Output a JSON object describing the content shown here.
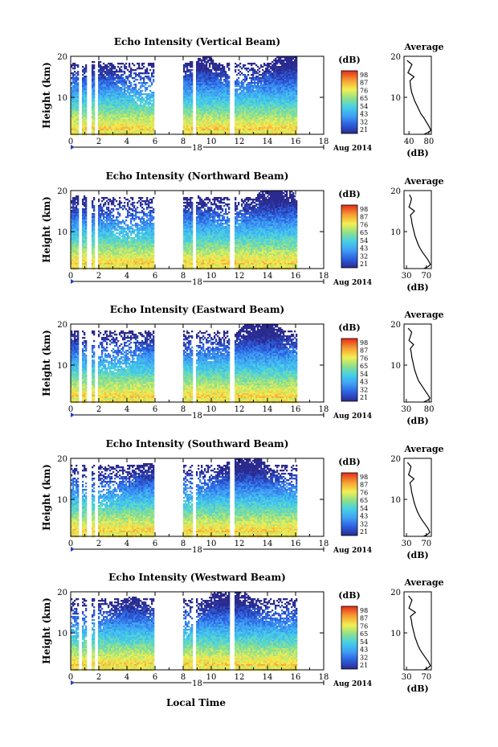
{
  "figure": {
    "xlabel_bottom": "Local Time",
    "date_label": "Aug 2014",
    "day_label": "18",
    "colorbar_unit": "(dB)",
    "profile_title": "Average",
    "profile_xlabel": "(dB)"
  },
  "chart_data": [
    {
      "type": "heatmap",
      "title": "Echo Intensity (Vertical Beam)",
      "ylabel": "Height (km)",
      "x_ticks": [
        "0",
        "2",
        "4",
        "6",
        "8",
        "10",
        "12",
        "14",
        "16",
        "18"
      ],
      "xlim": [
        0,
        18
      ],
      "y_ticks": [
        "10",
        "20"
      ],
      "ylim": [
        1,
        20
      ],
      "colorbar": {
        "unit": "(dB)",
        "ticks": [
          "21",
          "32",
          "43",
          "54",
          "65",
          "76",
          "87",
          "98"
        ]
      },
      "gaps": [
        [
          0.5,
          0.7
        ],
        [
          1.1,
          1.4
        ],
        [
          1.7,
          1.9
        ],
        [
          5.9,
          7.9
        ],
        [
          8.6,
          8.9
        ],
        [
          11.3,
          11.6
        ],
        [
          16.1,
          18
        ]
      ],
      "profile": {
        "title": "Average",
        "xlabel": "(dB)",
        "x_ticks": [
          "40",
          "80"
        ],
        "xlim": [
          30,
          85
        ],
        "heights": [
          1,
          1.5,
          2,
          3,
          4,
          5,
          6,
          7,
          8,
          9,
          10,
          11,
          12,
          13,
          14,
          15,
          16,
          17,
          18,
          19
        ],
        "values": [
          70,
          80,
          84,
          80,
          75,
          70,
          64,
          60,
          56,
          52,
          49,
          46,
          44,
          43,
          42,
          50,
          38,
          42,
          46,
          36
        ]
      }
    },
    {
      "type": "heatmap",
      "title": "Echo Intensity (Northward Beam)",
      "ylabel": "Height (km)",
      "x_ticks": [
        "0",
        "2",
        "4",
        "6",
        "8",
        "10",
        "12",
        "14",
        "16",
        "18"
      ],
      "xlim": [
        0,
        18
      ],
      "y_ticks": [
        "10",
        "20"
      ],
      "ylim": [
        1,
        20
      ],
      "colorbar": {
        "unit": "(dB)",
        "ticks": [
          "21",
          "32",
          "43",
          "54",
          "65",
          "76",
          "87",
          "98"
        ]
      },
      "gaps": [
        [
          0.5,
          0.7
        ],
        [
          1.1,
          1.4
        ],
        [
          1.7,
          1.9
        ],
        [
          5.9,
          7.9
        ],
        [
          8.6,
          8.9
        ],
        [
          11.3,
          11.6
        ],
        [
          16.1,
          18
        ]
      ],
      "profile": {
        "title": "Average",
        "xlabel": "(dB)",
        "x_ticks": [
          "30",
          "70"
        ],
        "xlim": [
          25,
          80
        ],
        "heights": [
          1,
          1.5,
          2,
          3,
          4,
          5,
          6,
          7,
          8,
          9,
          10,
          11,
          12,
          13,
          14,
          15,
          16,
          17,
          18,
          19
        ],
        "values": [
          65,
          74,
          78,
          74,
          68,
          62,
          57,
          53,
          50,
          47,
          45,
          43,
          41,
          40,
          38,
          46,
          35,
          38,
          40,
          36
        ]
      }
    },
    {
      "type": "heatmap",
      "title": "Echo Intensity (Eastward Beam)",
      "ylabel": "Height (km)",
      "x_ticks": [
        "0",
        "2",
        "4",
        "6",
        "8",
        "10",
        "12",
        "14",
        "16",
        "18"
      ],
      "xlim": [
        0,
        18
      ],
      "y_ticks": [
        "10",
        "20"
      ],
      "ylim": [
        1,
        20
      ],
      "colorbar": {
        "unit": "(dB)",
        "ticks": [
          "21",
          "32",
          "43",
          "54",
          "65",
          "76",
          "87",
          "98"
        ]
      },
      "gaps": [
        [
          0.5,
          0.7
        ],
        [
          1.1,
          1.4
        ],
        [
          1.7,
          1.9
        ],
        [
          5.9,
          7.9
        ],
        [
          8.6,
          8.9
        ],
        [
          11.3,
          11.6
        ],
        [
          16.1,
          18
        ]
      ],
      "profile": {
        "title": "Average",
        "xlabel": "(dB)",
        "x_ticks": [
          "30",
          "80"
        ],
        "xlim": [
          25,
          85
        ],
        "heights": [
          1,
          1.5,
          2,
          3,
          4,
          5,
          6,
          7,
          8,
          9,
          10,
          11,
          12,
          13,
          14,
          15,
          16,
          17,
          18,
          19
        ],
        "values": [
          68,
          78,
          82,
          76,
          70,
          64,
          58,
          54,
          51,
          48,
          46,
          44,
          42,
          41,
          39,
          46,
          36,
          39,
          42,
          34
        ]
      }
    },
    {
      "type": "heatmap",
      "title": "Echo Intensity (Southward Beam)",
      "ylabel": "Height (km)",
      "x_ticks": [
        "0",
        "2",
        "4",
        "6",
        "8",
        "10",
        "12",
        "14",
        "16",
        "18"
      ],
      "xlim": [
        0,
        18
      ],
      "y_ticks": [
        "10",
        "20"
      ],
      "ylim": [
        1,
        20
      ],
      "colorbar": {
        "unit": "(dB)",
        "ticks": [
          "21",
          "32",
          "43",
          "54",
          "65",
          "76",
          "87",
          "98"
        ]
      },
      "gaps": [
        [
          0.5,
          0.7
        ],
        [
          1.1,
          1.4
        ],
        [
          1.7,
          1.9
        ],
        [
          5.9,
          7.9
        ],
        [
          8.6,
          8.9
        ],
        [
          11.3,
          11.6
        ],
        [
          16.1,
          18
        ]
      ],
      "profile": {
        "title": "Average",
        "xlabel": "(dB)",
        "x_ticks": [
          "30",
          "70"
        ],
        "xlim": [
          25,
          80
        ],
        "heights": [
          1,
          1.5,
          2,
          3,
          4,
          5,
          6,
          7,
          8,
          9,
          10,
          11,
          12,
          13,
          14,
          15,
          16,
          17,
          18,
          19
        ],
        "values": [
          64,
          73,
          77,
          73,
          67,
          61,
          56,
          52,
          49,
          46,
          44,
          42,
          40,
          39,
          37,
          45,
          34,
          37,
          39,
          32
        ]
      }
    },
    {
      "type": "heatmap",
      "title": "Echo Intensity (Westward Beam)",
      "ylabel": "Height (km)",
      "x_ticks": [
        "0",
        "2",
        "4",
        "6",
        "8",
        "10",
        "12",
        "14",
        "16",
        "18"
      ],
      "xlim": [
        0,
        18
      ],
      "y_ticks": [
        "10",
        "20"
      ],
      "ylim": [
        1,
        20
      ],
      "colorbar": {
        "unit": "(dB)",
        "ticks": [
          "21",
          "32",
          "43",
          "54",
          "65",
          "76",
          "87",
          "98"
        ]
      },
      "gaps": [
        [
          0.5,
          0.7
        ],
        [
          1.1,
          1.4
        ],
        [
          1.7,
          1.9
        ],
        [
          5.9,
          7.9
        ],
        [
          8.6,
          8.9
        ],
        [
          11.3,
          11.6
        ],
        [
          16.1,
          18
        ]
      ],
      "profile": {
        "title": "Average",
        "xlabel": "(dB)",
        "x_ticks": [
          "30",
          "70"
        ],
        "xlim": [
          25,
          80
        ],
        "heights": [
          1,
          1.5,
          2,
          3,
          4,
          5,
          6,
          7,
          8,
          9,
          10,
          11,
          12,
          13,
          14,
          15,
          16,
          17,
          18,
          19
        ],
        "values": [
          65,
          74,
          78,
          74,
          68,
          62,
          57,
          53,
          50,
          47,
          45,
          43,
          41,
          40,
          38,
          48,
          35,
          38,
          41,
          34
        ]
      }
    }
  ]
}
